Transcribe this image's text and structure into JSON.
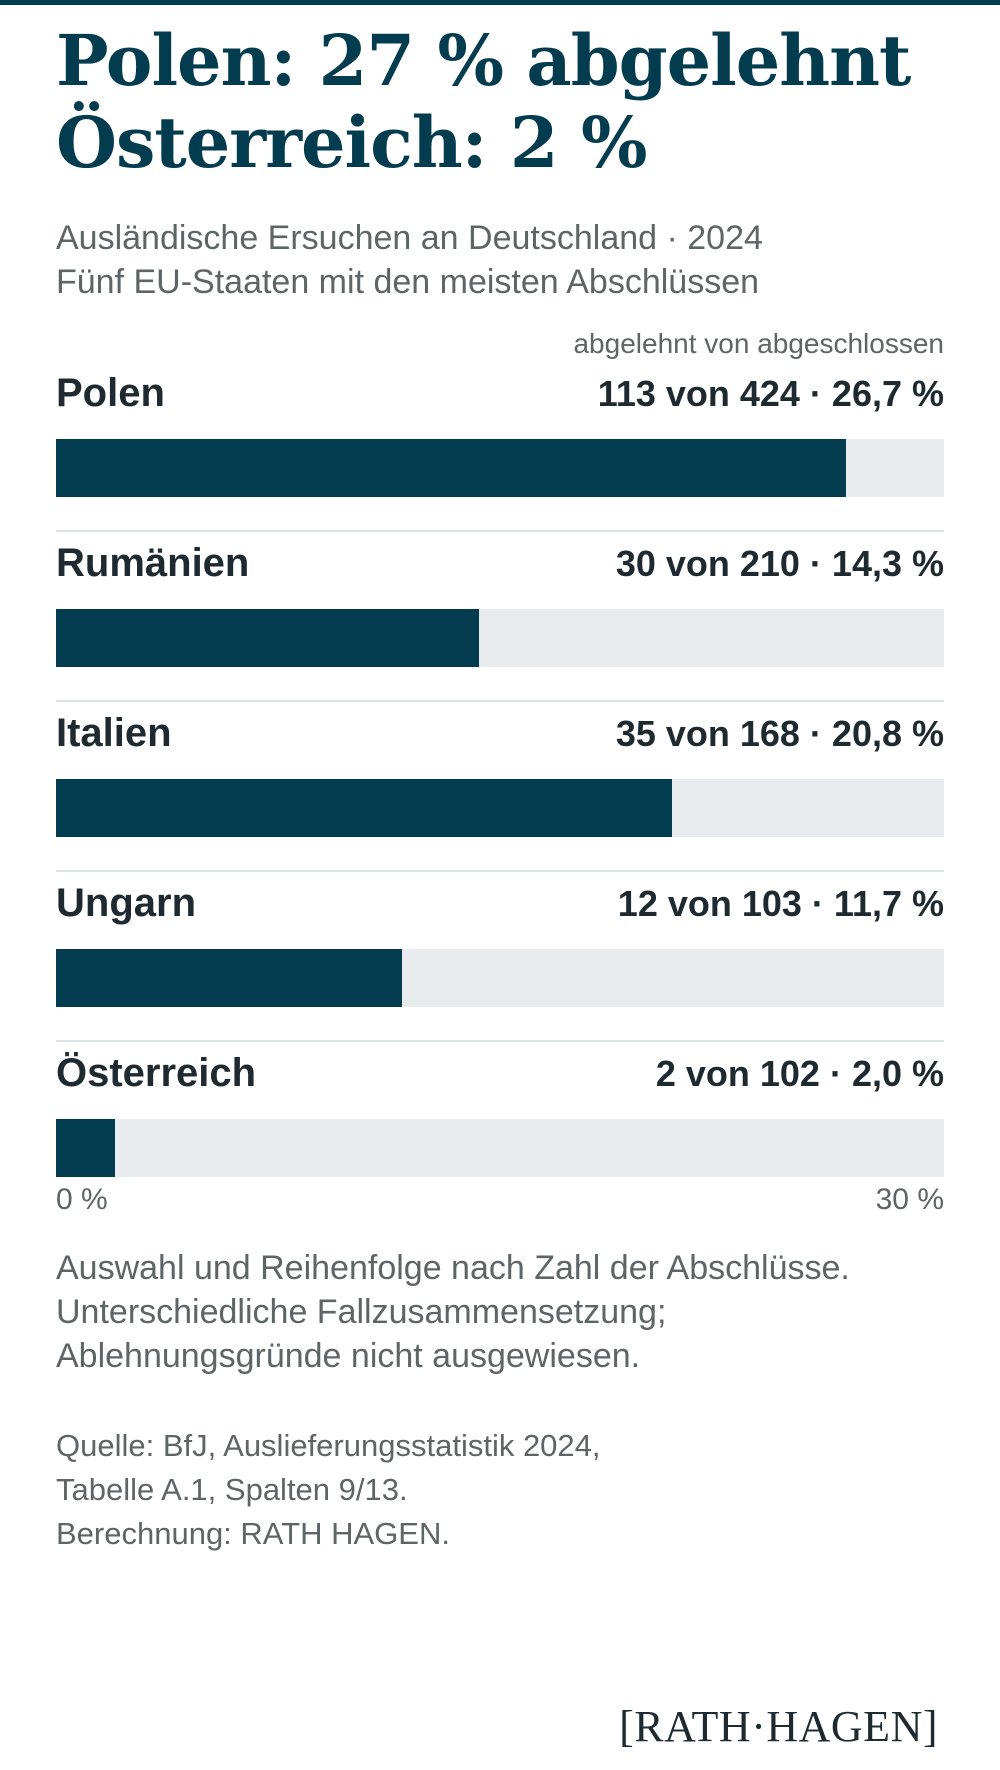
{
  "headline": {
    "line1": "Polen: 27 % abgelehnt",
    "line2": "Österreich: 2 %"
  },
  "subtitle": {
    "line1": "Ausländische Ersuchen an Deutschland · 2024",
    "line2": "Fünf EU-Staaten mit den meisten Abschlüssen"
  },
  "column_header": "abgelehnt von abgeschlossen",
  "chart_data": {
    "type": "bar",
    "orientation": "horizontal",
    "categories": [
      "Polen",
      "Rumänien",
      "Italien",
      "Ungarn",
      "Österreich"
    ],
    "values": [
      26.7,
      14.3,
      20.8,
      11.7,
      2.0
    ],
    "abgelehnt": [
      113,
      30,
      35,
      12,
      2
    ],
    "abgeschlossen": [
      424,
      210,
      168,
      103,
      102
    ],
    "value_labels": [
      "113 von 424 · 26,7 %",
      "30 von 210 · 14,3 %",
      "35 von 168 · 20,8 %",
      "12 von 103 · 11,7 %",
      "2 von 102 · 2,0 %"
    ],
    "xlim": [
      0,
      30
    ],
    "axis_min_label": "0 %",
    "axis_max_label": "30 %",
    "colors": {
      "bar": "#033c4f",
      "track": "#e8ecee"
    },
    "grid": false
  },
  "note": {
    "line1": "Auswahl und Reihenfolge nach Zahl der Abschlüsse.",
    "line2": "Unterschiedliche Fallzusammensetzung;",
    "line3": "Ablehnungsgründe nicht ausgewiesen."
  },
  "source": {
    "line1": "Quelle: BfJ, Auslieferungsstatistik 2024,",
    "line2": "Tabelle A.1, Spalten 9/13.",
    "line3": "Berechnung: RATH HAGEN."
  },
  "logo": {
    "text": "[RATH·HAGEN]"
  }
}
